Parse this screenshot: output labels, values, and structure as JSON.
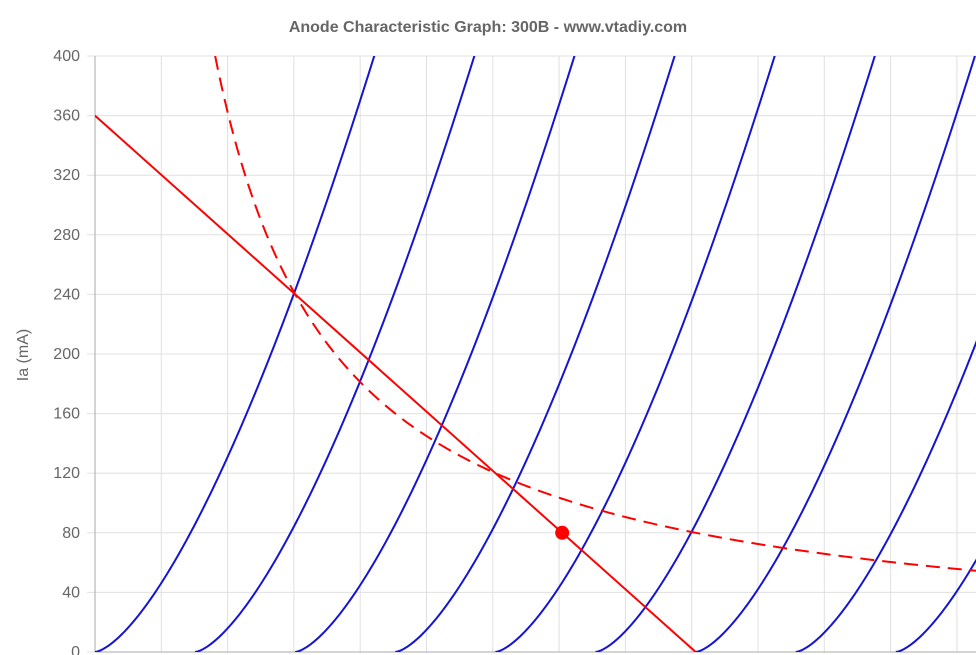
{
  "chart_data": {
    "type": "line",
    "title": "Anode Characteristic Graph: 300B - www.vtadiy.com",
    "ylabel": "Ia (mA)",
    "xlabel": "",
    "ylim": [
      0,
      400
    ],
    "xlim": [
      0,
      660
    ],
    "yticks": [
      0,
      40,
      80,
      120,
      160,
      200,
      240,
      280,
      320,
      360,
      400
    ],
    "grid": true,
    "colors": {
      "curves": "#1414d2",
      "load_line": "#ff0000",
      "dissipation": "#ff0000",
      "grid": "#e0e0e0",
      "axis": "#aaaaaa"
    },
    "grid_curves": [
      {
        "offset": 0
      },
      {
        "offset": 75
      },
      {
        "offset": 150
      },
      {
        "offset": 225
      },
      {
        "offset": 300
      },
      {
        "offset": 375
      },
      {
        "offset": 450
      },
      {
        "offset": 525
      },
      {
        "offset": 600
      }
    ],
    "curve_law": {
      "exponent": 1.5,
      "k": 0.1322
    },
    "load_line": {
      "x": [
        0,
        450
      ],
      "y": [
        360,
        0
      ]
    },
    "max_dissipation_curve": {
      "power_w": 36,
      "x_from": 90,
      "x_to": 660
    },
    "operating_point": {
      "x": 350,
      "y": 80
    }
  }
}
